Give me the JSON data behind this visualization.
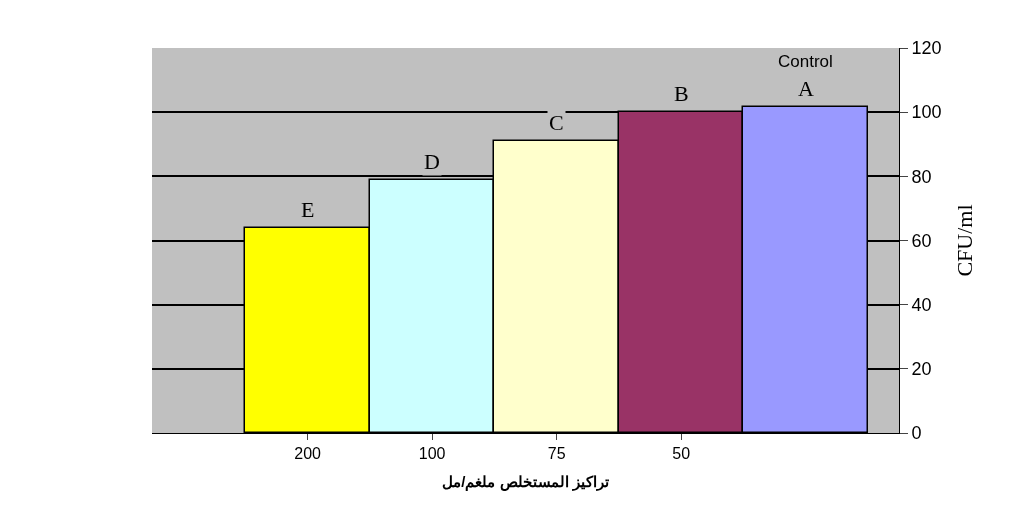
{
  "chart_data": {
    "type": "bar",
    "xlabel": "تراكيز المستخلص ملغم/مل",
    "ylabel": "CFU/ml",
    "categories": [
      "200",
      "100",
      "75",
      "50",
      null
    ],
    "values": [
      64,
      79,
      91,
      100,
      101.5
    ],
    "colors": [
      "#ffff00",
      "#ccffff",
      "#ffffcc",
      "#993366",
      "#9999ff"
    ],
    "ylim": [
      0,
      120
    ],
    "yticks": [
      0,
      20,
      40,
      60,
      80,
      100,
      120
    ],
    "grid": "y",
    "annotations": [
      "E",
      "D",
      "C",
      "B",
      "A",
      "Control"
    ]
  }
}
